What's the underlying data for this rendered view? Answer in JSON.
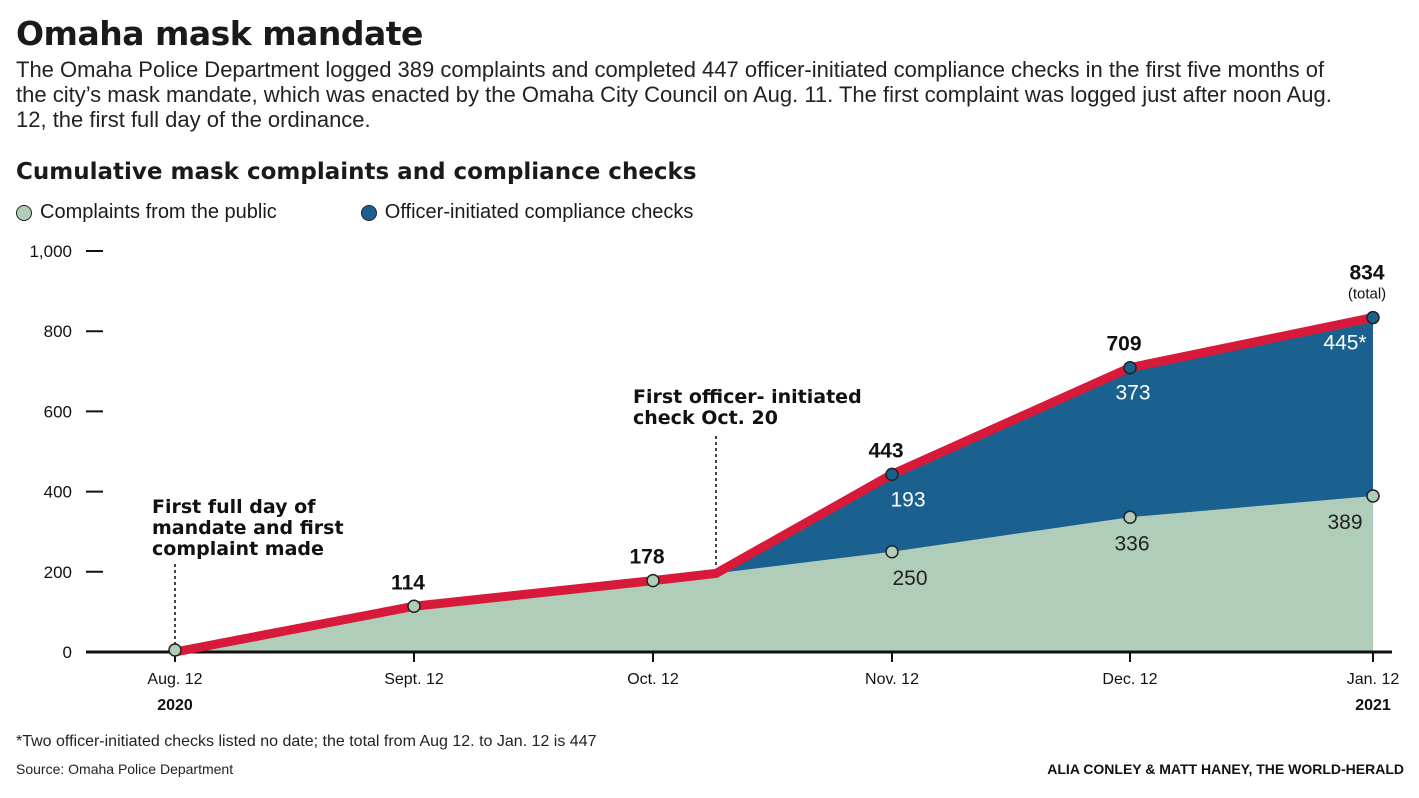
{
  "header": {
    "title": "Omaha mask mandate",
    "subtitle": "The Omaha Police Department logged 389 complaints and completed 447 officer-initiated compliance checks in the first five months of the city’s mask mandate, which was enacted by the Omaha City Council on Aug. 11. The first complaint was logged just after noon Aug. 12, the first full day of the ordinance."
  },
  "chart_heading": "Cumulative mask complaints and compliance checks",
  "legend": {
    "complaints": "Complaints from the public",
    "checks": "Officer-initiated compliance checks"
  },
  "colors": {
    "complaints_fill": "#b0cdb9",
    "checks_fill": "#1b6190",
    "total_line": "#d7193a",
    "axis": "#111111"
  },
  "chart_data": {
    "type": "area",
    "categories": [
      "Aug. 12",
      "Sept. 12",
      "Oct. 12",
      "Oct. 20",
      "Nov. 12",
      "Dec. 12",
      "Jan. 12"
    ],
    "tick_labels": [
      "Aug. 12",
      "Sept. 12",
      "Oct. 12",
      "Nov. 12",
      "Dec. 12",
      "Jan. 12"
    ],
    "year_labels": {
      "start": "2020",
      "end": "2021"
    },
    "series": [
      {
        "name": "Complaints from the public",
        "values": [
          5,
          114,
          178,
          196,
          250,
          336,
          389
        ]
      },
      {
        "name": "Officer-initiated compliance checks",
        "values": [
          0,
          0,
          0,
          0,
          193,
          373,
          445
        ]
      }
    ],
    "totals": [
      5,
      114,
      178,
      196,
      443,
      709,
      834
    ],
    "total_labels": [
      "",
      "114",
      "178",
      "",
      "443",
      "709",
      "834"
    ],
    "total_sublabel": "(total)",
    "complaint_labels": [
      "",
      "",
      "",
      "",
      "250",
      "336",
      "389"
    ],
    "check_labels": [
      "",
      "",
      "",
      "",
      "193",
      "373",
      "445*"
    ],
    "ylim": [
      0,
      1000
    ],
    "yticks": [
      0,
      200,
      400,
      600,
      800,
      1000
    ],
    "ytick_labels": [
      "0",
      "200",
      "400",
      "600",
      "800",
      "1,000"
    ],
    "annotations": [
      {
        "lines": [
          "First full day of",
          "mandate and first",
          "complaint made"
        ],
        "at_category": 0
      },
      {
        "lines": [
          "First officer- initiated",
          "check Oct. 20"
        ],
        "at_category": 3
      }
    ]
  },
  "footer": {
    "footnote": "*Two officer-initiated checks listed no date; the total from Aug 12. to Jan. 12 is 447",
    "source": "Source: Omaha Police Department",
    "credit": "ALIA CONLEY & MATT HANEY, THE WORLD-HERALD"
  }
}
